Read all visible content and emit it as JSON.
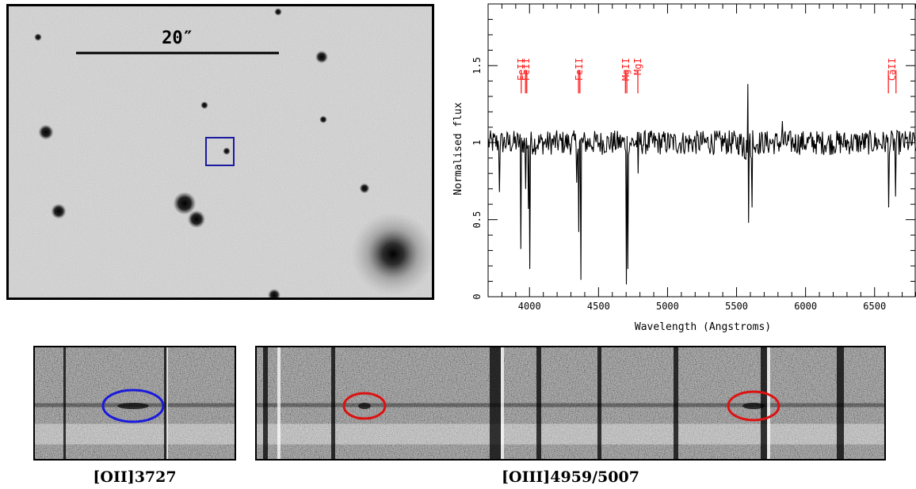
{
  "image": {
    "scale_label": "20″",
    "scale_arcsec": 20
  },
  "chart_data": {
    "type": "line",
    "xlabel": "Wavelength (Angstroms)",
    "ylabel": "Normalised flux",
    "xlim": [
      3700,
      6800
    ],
    "ylim": [
      0,
      1.9
    ],
    "xticks": [
      4000,
      4500,
      5000,
      5500,
      6000,
      6500
    ],
    "yticks": [
      0,
      0.5,
      1,
      1.5
    ],
    "series": [
      {
        "color": "#000000",
        "continuum": 1.0,
        "noise": 0.05,
        "absorption_lines": [
          {
            "x": 3782,
            "y": 0.68
          },
          {
            "x": 3934,
            "y": 0.31
          },
          {
            "x": 3968,
            "y": 0.7
          },
          {
            "x": 3990,
            "y": 0.57
          },
          {
            "x": 4000,
            "y": 0.18
          },
          {
            "x": 4340,
            "y": 0.74
          },
          {
            "x": 4356,
            "y": 0.42
          },
          {
            "x": 4369,
            "y": 0.11
          },
          {
            "x": 4699,
            "y": 0.08
          },
          {
            "x": 4712,
            "y": 0.18
          },
          {
            "x": 4787,
            "y": 0.8
          },
          {
            "x": 5583,
            "y": 0.48
          },
          {
            "x": 5608,
            "y": 0.58
          },
          {
            "x": 6601,
            "y": 0.58
          },
          {
            "x": 6652,
            "y": 0.65
          }
        ],
        "emission_features": [
          {
            "x": 5578,
            "y": 1.38
          },
          {
            "x": 5830,
            "y": 1.14
          }
        ]
      }
    ],
    "annotations": [
      {
        "label": "FeII",
        "ticks": [
          3940
        ]
      },
      {
        "label": "FeII",
        "ticks": [
          3971,
          3980
        ]
      },
      {
        "label": "FeII",
        "ticks": [
          4355,
          4365
        ]
      },
      {
        "label": "MgII",
        "ticks": [
          4695,
          4705
        ]
      },
      {
        "label": "MgI",
        "ticks": [
          4785
        ]
      },
      {
        "label": "CaII",
        "ticks": [
          6600,
          6655
        ]
      }
    ],
    "annotation_color": "#ff2020"
  },
  "slits": [
    {
      "caption_prefix": "[O",
      "caption_ion": "II",
      "caption_suffix": "]3727",
      "ellipse_color": "#1a1adc"
    },
    {
      "caption_prefix": "[O",
      "caption_ion": "III",
      "caption_suffix": "]4959/5007",
      "ellipse_color": "#dd1111"
    }
  ],
  "colors": {
    "target_box": "#1a1aa0"
  }
}
